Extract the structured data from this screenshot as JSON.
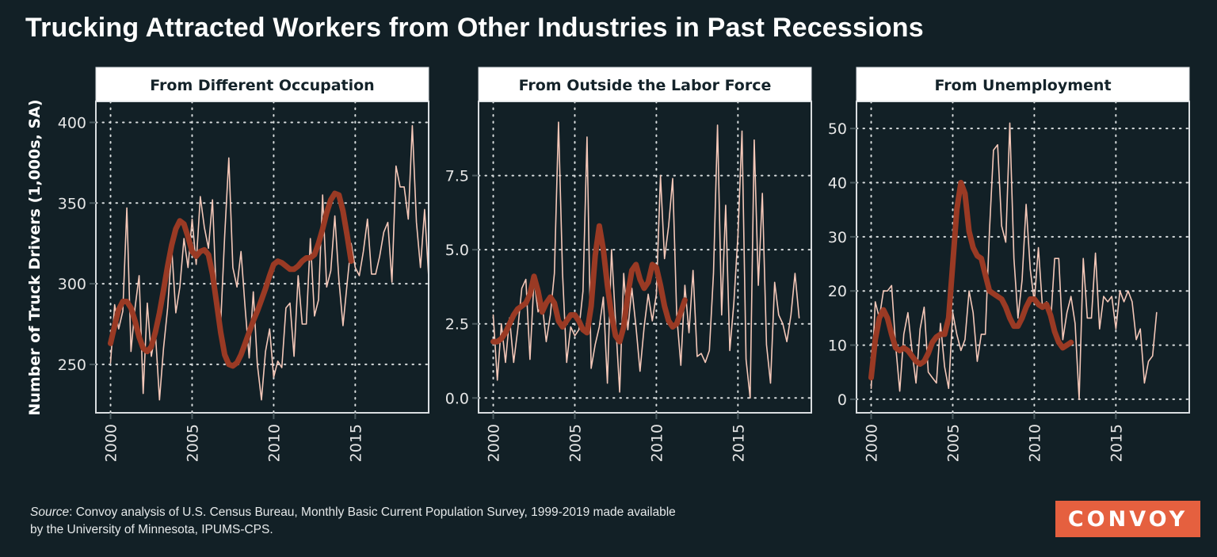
{
  "header": {
    "title": "Trucking Attracted Workers from Other Industries in Past Recessions"
  },
  "footer": {
    "source_label": "Source",
    "source_text": ": Convoy analysis of U.S. Census Bureau, Monthly Basic Current Population Survey, 1999-2019 made available",
    "source_text_line2": "by the University of Minnesota, IPUMS-CPS.",
    "logo_text": "CONVOY"
  },
  "colors": {
    "background": "#122026",
    "raw_line": "#f4c7b8",
    "trend_line": "#9a3a24",
    "logo_bg": "#e5603f",
    "strip_bg": "#ffffff",
    "grid": "#d8dcdd"
  },
  "chart_data": [
    {
      "type": "line",
      "title": "From Different Occupation",
      "xlabel": "",
      "ylabel": "Number of Truck Drivers (1,000s, SA)",
      "x_ticks": [
        2000,
        2005,
        2010,
        2015
      ],
      "x_tick_labels": [
        "2000",
        "2005",
        "2010",
        "2015"
      ],
      "y_ticks": [
        250,
        300,
        350,
        400
      ],
      "y_tick_labels": [
        "250",
        "300",
        "350",
        "400"
      ],
      "xlim": [
        1999.1,
        2019.5
      ],
      "ylim": [
        220,
        413
      ],
      "grid": true,
      "series": [
        {
          "name": "quarterly",
          "x_start": 2000.0,
          "x_step": 0.25,
          "values": [
            251,
            287,
            272,
            283,
            347,
            258,
            285,
            305,
            232,
            288,
            255,
            270,
            228,
            260,
            285,
            322,
            282,
            298,
            328,
            310,
            340,
            312,
            354,
            335,
            322,
            352,
            288,
            275,
            330,
            378,
            310,
            298,
            320,
            285,
            254,
            295,
            250,
            228,
            258,
            272,
            242,
            252,
            248,
            285,
            288,
            255,
            305,
            275,
            275,
            328,
            280,
            290,
            355,
            298,
            308,
            342,
            302,
            274,
            300,
            325,
            310,
            305,
            320,
            340,
            306,
            306,
            317,
            332,
            338,
            301,
            373,
            360,
            360,
            340,
            398,
            338,
            310,
            346,
            304
          ]
        },
        {
          "name": "trend",
          "x_start": 2000.0,
          "x_step": 0.25,
          "values": [
            263,
            274,
            284,
            289,
            289,
            285,
            277,
            267,
            260,
            258,
            261,
            270,
            282,
            296,
            311,
            324,
            334,
            339,
            337,
            329,
            320,
            317,
            320,
            321,
            318,
            306,
            288,
            270,
            256,
            250,
            249,
            251,
            256,
            263,
            270,
            277,
            283,
            290,
            297,
            305,
            312,
            314,
            313,
            311,
            309,
            309,
            311,
            314,
            316,
            316,
            318,
            325,
            334,
            344,
            352,
            356,
            355,
            345,
            330,
            314
          ]
        }
      ]
    },
    {
      "type": "line",
      "title": "From Outside the Labor Force",
      "xlabel": "",
      "ylabel": "",
      "x_ticks": [
        2000,
        2005,
        2010,
        2015
      ],
      "x_tick_labels": [
        "2000",
        "2005",
        "2010",
        "2015"
      ],
      "y_ticks": [
        0.0,
        2.5,
        5.0,
        7.5
      ],
      "y_tick_labels": [
        "0.0",
        "2.5",
        "5.0",
        "7.5"
      ],
      "xlim": [
        1999.1,
        2019.5
      ],
      "ylim": [
        -0.5,
        10.0
      ],
      "grid": true,
      "series": [
        {
          "name": "quarterly",
          "x_start": 2000.0,
          "x_step": 0.25,
          "values": [
            2.8,
            0.6,
            2.5,
            1.2,
            2.7,
            1.2,
            2.3,
            3.7,
            4.0,
            1.3,
            4.0,
            2.9,
            3.2,
            1.9,
            2.8,
            4.2,
            9.3,
            4.2,
            1.2,
            2.4,
            2.1,
            2.3,
            3.6,
            8.8,
            1.0,
            1.8,
            2.4,
            3.4,
            0.5,
            5.0,
            2.6,
            0.2,
            4.2,
            2.3,
            3.7,
            2.4,
            0.9,
            2.4,
            3.5,
            2.6,
            3.5,
            7.5,
            4.7,
            5.8,
            7.4,
            2.8,
            1.1,
            3.8,
            2.2,
            4.3,
            1.4,
            1.5,
            1.2,
            1.6,
            4.2,
            9.2,
            2.8,
            6.5,
            1.6,
            3.2,
            5.5,
            9.0,
            1.3,
            0.0,
            8.7,
            3.8,
            6.9,
            1.8,
            0.5,
            3.9,
            2.8,
            2.5,
            1.9,
            2.8,
            4.2,
            2.7
          ]
        },
        {
          "name": "trend",
          "x_start": 2000.0,
          "x_step": 0.25,
          "values": [
            1.9,
            1.9,
            2.0,
            2.2,
            2.5,
            2.8,
            3.0,
            3.1,
            3.2,
            3.5,
            4.1,
            3.6,
            2.9,
            3.2,
            3.4,
            3.2,
            2.6,
            2.4,
            2.6,
            2.8,
            2.8,
            2.6,
            2.3,
            2.2,
            3.1,
            4.8,
            5.8,
            5.0,
            3.8,
            2.8,
            2.1,
            1.9,
            2.4,
            3.5,
            4.3,
            4.5,
            4.0,
            3.7,
            3.9,
            4.5,
            4.4,
            3.8,
            3.1,
            2.6,
            2.4,
            2.5,
            2.9,
            3.3
          ]
        }
      ]
    },
    {
      "type": "line",
      "title": "From Unemployment",
      "xlabel": "",
      "ylabel": "",
      "x_ticks": [
        2000,
        2005,
        2010,
        2015
      ],
      "x_tick_labels": [
        "2000",
        "2005",
        "2010",
        "2015"
      ],
      "y_ticks": [
        0,
        10,
        20,
        30,
        40,
        50
      ],
      "y_tick_labels": [
        "0",
        "10",
        "20",
        "30",
        "40",
        "50"
      ],
      "xlim": [
        1999.1,
        2019.5
      ],
      "ylim": [
        -2.5,
        55
      ],
      "grid": true,
      "series": [
        {
          "name": "quarterly",
          "x_start": 2000.0,
          "x_step": 0.25,
          "values": [
            2,
            18,
            15,
            20,
            20,
            21,
            10,
            1.5,
            12,
            16,
            9,
            3,
            13,
            17,
            5,
            4,
            3,
            14,
            6,
            2,
            16,
            12,
            9,
            11,
            20,
            16,
            7,
            12,
            12,
            31,
            46,
            47,
            32,
            29,
            51,
            26,
            15,
            22,
            36,
            24,
            18,
            28,
            17,
            18,
            14,
            26,
            26,
            11,
            16,
            19,
            14,
            0,
            26,
            15,
            15,
            27,
            13,
            19,
            18,
            19,
            13,
            20,
            18,
            20,
            18,
            11,
            13,
            3,
            7,
            8,
            16
          ]
        },
        {
          "name": "trend",
          "x_start": 2000.0,
          "x_step": 0.25,
          "values": [
            4,
            11,
            15,
            16.5,
            15,
            12,
            9.5,
            9,
            9.5,
            9,
            8,
            7,
            6.5,
            7,
            8.5,
            10.5,
            11.5,
            12,
            12,
            15,
            25,
            35,
            40,
            38,
            31,
            28,
            26.5,
            26,
            23,
            20,
            19.5,
            19,
            18.5,
            17,
            15,
            13.5,
            13.5,
            15,
            17,
            18.5,
            18.5,
            17.5,
            17,
            17.5,
            15.5,
            12.5,
            10.5,
            9.5,
            10,
            10.5
          ]
        }
      ]
    }
  ]
}
